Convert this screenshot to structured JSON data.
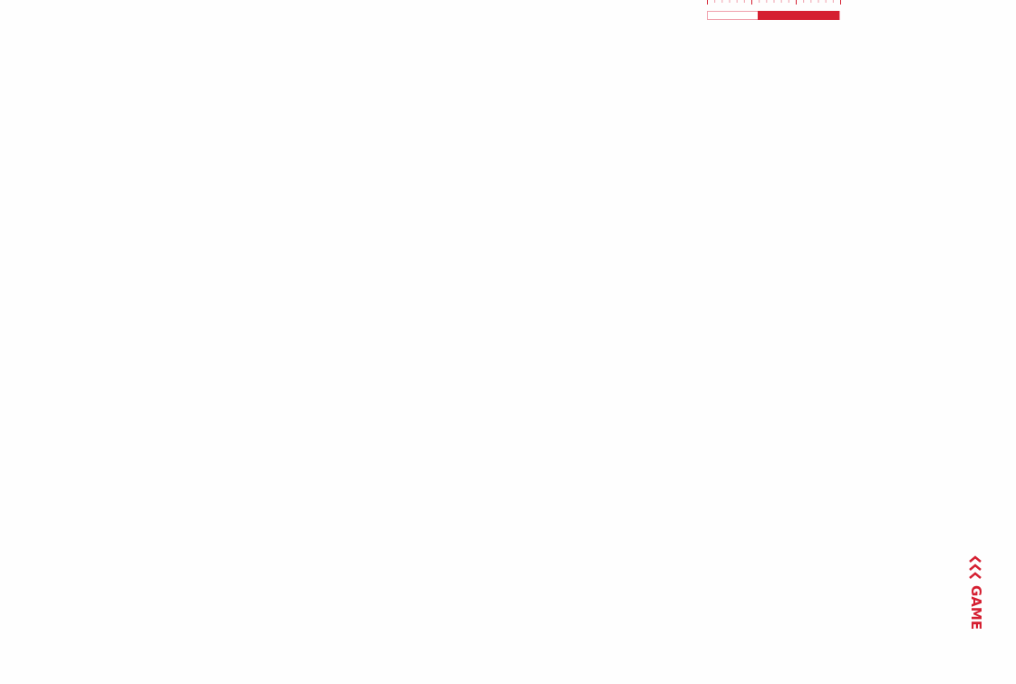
{
  "meter": {
    "level_percent": 62,
    "accent_color": "#d51f31",
    "empty_border_color": "#f0a0ac"
  },
  "game_button": {
    "label": "GAME",
    "icon": "chevrons-up-icon"
  }
}
